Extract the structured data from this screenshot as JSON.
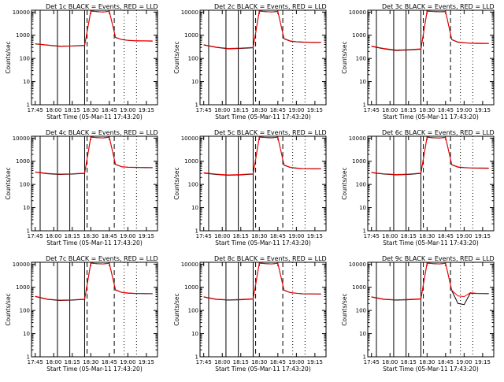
{
  "chart_data": [
    {
      "type": "line",
      "title": "Det 1c BLACK = Events, RED = LLD",
      "xlabel": "Start Time (05-Mar-11 17:43:20)",
      "ylabel": "Counts/sec",
      "y_scale": "log",
      "ylim": [
        1,
        12000
      ],
      "x": [
        "17:45",
        "17:55",
        "18:05",
        "18:15",
        "18:25",
        "18:30",
        "18:35",
        "18:40",
        "18:45",
        "18:50",
        "18:55",
        "19:00",
        "19:05",
        "19:10",
        "19:15",
        "19:20"
      ],
      "y_ticks": [
        "1",
        "10",
        "100",
        "1000",
        "10000"
      ],
      "x_ticks": [
        "17:45",
        "18:00",
        "18:15",
        "18:30",
        "18:45",
        "19:00",
        "19:15"
      ],
      "series": [
        {
          "name": "BLACK",
          "color": "#000000",
          "values": [
            420,
            370,
            330,
            340,
            360,
            11000,
            10500,
            10000,
            10800,
            800,
            650,
            600,
            580,
            570,
            565,
            560
          ]
        },
        {
          "name": "RED",
          "color": "#ff0000",
          "values": [
            430,
            380,
            340,
            350,
            370,
            11200,
            10600,
            10100,
            10900,
            820,
            660,
            610,
            590,
            580,
            575,
            570
          ]
        }
      ]
    },
    {
      "type": "line",
      "title": "Det 2c BLACK = Events, RED = LLD",
      "xlabel": "Start Time (05-Mar-11 17:43:20)",
      "ylabel": "Counts/sec",
      "y_scale": "log",
      "ylim": [
        1,
        12000
      ],
      "x": [
        "17:45",
        "17:55",
        "18:05",
        "18:15",
        "18:25",
        "18:30",
        "18:35",
        "18:40",
        "18:45",
        "18:50",
        "18:55",
        "19:00",
        "19:05",
        "19:10",
        "19:15",
        "19:20"
      ],
      "y_ticks": [
        "1",
        "10",
        "100",
        "1000",
        "10000"
      ],
      "x_ticks": [
        "17:45",
        "18:00",
        "18:15",
        "18:30",
        "18:45",
        "19:00",
        "19:15"
      ],
      "series": [
        {
          "name": "BLACK",
          "color": "#000000",
          "values": [
            380,
            300,
            260,
            270,
            290,
            11000,
            10400,
            10100,
            10700,
            700,
            560,
            520,
            500,
            495,
            490,
            488
          ]
        },
        {
          "name": "RED",
          "color": "#ff0000",
          "values": [
            390,
            310,
            270,
            280,
            300,
            11200,
            10500,
            10200,
            10800,
            720,
            570,
            530,
            510,
            505,
            500,
            498
          ]
        }
      ]
    },
    {
      "type": "line",
      "title": "Det 3c BLACK = Events, RED = LLD",
      "xlabel": "Start Time (05-Mar-11 17:43:20)",
      "ylabel": "Counts/sec",
      "y_scale": "log",
      "ylim": [
        1,
        12000
      ],
      "x": [
        "17:45",
        "17:55",
        "18:05",
        "18:15",
        "18:25",
        "18:30",
        "18:35",
        "18:40",
        "18:45",
        "18:50",
        "18:55",
        "19:00",
        "19:05",
        "19:10",
        "19:15",
        "19:20"
      ],
      "y_ticks": [
        "1",
        "10",
        "100",
        "1000",
        "10000"
      ],
      "x_ticks": [
        "17:45",
        "18:00",
        "18:15",
        "18:30",
        "18:45",
        "19:00",
        "19:15"
      ],
      "series": [
        {
          "name": "BLACK",
          "color": "#000000",
          "values": [
            330,
            260,
            220,
            230,
            250,
            10800,
            10600,
            10300,
            10500,
            640,
            500,
            470,
            450,
            445,
            440,
            438
          ]
        },
        {
          "name": "RED",
          "color": "#ff0000",
          "values": [
            340,
            270,
            230,
            240,
            260,
            11000,
            10700,
            10400,
            10600,
            660,
            510,
            480,
            460,
            455,
            450,
            448
          ]
        }
      ]
    },
    {
      "type": "line",
      "title": "Det 4c BLACK = Events, RED = LLD",
      "xlabel": "Start Time (05-Mar-11 17:43:20)",
      "ylabel": "Counts/sec",
      "y_scale": "log",
      "ylim": [
        1,
        12000
      ],
      "x": [
        "17:45",
        "17:55",
        "18:05",
        "18:15",
        "18:25",
        "18:30",
        "18:35",
        "18:40",
        "18:45",
        "18:50",
        "18:55",
        "19:00",
        "19:05",
        "19:10",
        "19:15",
        "19:20"
      ],
      "y_ticks": [
        "1",
        "10",
        "100",
        "1000",
        "10000"
      ],
      "x_ticks": [
        "17:45",
        "18:00",
        "18:15",
        "18:30",
        "18:45",
        "19:00",
        "19:15"
      ],
      "series": [
        {
          "name": "BLACK",
          "color": "#000000",
          "values": [
            340,
            290,
            270,
            280,
            300,
            11000,
            10400,
            10200,
            10900,
            720,
            580,
            550,
            540,
            535,
            530,
            528
          ]
        },
        {
          "name": "RED",
          "color": "#ff0000",
          "values": [
            350,
            300,
            280,
            290,
            310,
            11200,
            10500,
            10300,
            11000,
            740,
            590,
            560,
            550,
            545,
            540,
            538
          ]
        }
      ]
    },
    {
      "type": "line",
      "title": "Det 5c BLACK = Events, RED = LLD",
      "xlabel": "Start Time (05-Mar-11 17:43:20)",
      "ylabel": "Counts/sec",
      "y_scale": "log",
      "ylim": [
        1,
        12000
      ],
      "x": [
        "17:45",
        "17:55",
        "18:05",
        "18:15",
        "18:25",
        "18:30",
        "18:35",
        "18:40",
        "18:45",
        "18:50",
        "18:55",
        "19:00",
        "19:05",
        "19:10",
        "19:15",
        "19:20"
      ],
      "y_ticks": [
        "1",
        "10",
        "100",
        "1000",
        "10000"
      ],
      "x_ticks": [
        "17:45",
        "18:00",
        "18:15",
        "18:30",
        "18:45",
        "19:00",
        "19:15"
      ],
      "series": [
        {
          "name": "BLACK",
          "color": "#000000",
          "values": [
            310,
            270,
            250,
            260,
            280,
            11000,
            10600,
            10300,
            10800,
            680,
            540,
            500,
            480,
            475,
            470,
            468
          ]
        },
        {
          "name": "RED",
          "color": "#ff0000",
          "values": [
            320,
            280,
            260,
            270,
            290,
            11200,
            10700,
            10400,
            10900,
            700,
            550,
            510,
            490,
            485,
            480,
            478
          ]
        }
      ]
    },
    {
      "type": "line",
      "title": "Det 6c BLACK = Events, RED = LLD",
      "xlabel": "Start Time (05-Mar-11 17:43:20)",
      "ylabel": "Counts/sec",
      "y_scale": "log",
      "ylim": [
        1,
        12000
      ],
      "x": [
        "17:45",
        "17:55",
        "18:05",
        "18:15",
        "18:25",
        "18:30",
        "18:35",
        "18:40",
        "18:45",
        "18:50",
        "18:55",
        "19:00",
        "19:05",
        "19:10",
        "19:15",
        "19:20"
      ],
      "y_ticks": [
        "1",
        "10",
        "100",
        "1000",
        "10000"
      ],
      "x_ticks": [
        "17:45",
        "18:00",
        "18:15",
        "18:30",
        "18:45",
        "19:00",
        "19:15"
      ],
      "series": [
        {
          "name": "BLACK",
          "color": "#000000",
          "values": [
            320,
            280,
            260,
            270,
            300,
            10900,
            10300,
            10100,
            10700,
            700,
            560,
            530,
            510,
            505,
            500,
            498
          ]
        },
        {
          "name": "RED",
          "color": "#ff0000",
          "values": [
            330,
            290,
            270,
            280,
            310,
            11100,
            10400,
            10200,
            10800,
            720,
            570,
            540,
            520,
            515,
            510,
            508
          ]
        }
      ]
    },
    {
      "type": "line",
      "title": "Det 7c BLACK = Events, RED = LLD",
      "xlabel": "Start Time (05-Mar-11 17:43:20)",
      "ylabel": "Counts/sec",
      "y_scale": "log",
      "ylim": [
        1,
        12000
      ],
      "x": [
        "17:45",
        "17:55",
        "18:05",
        "18:15",
        "18:25",
        "18:30",
        "18:35",
        "18:40",
        "18:45",
        "18:50",
        "18:55",
        "19:00",
        "19:05",
        "19:10",
        "19:15",
        "19:20"
      ],
      "y_ticks": [
        "1",
        "10",
        "100",
        "1000",
        "10000"
      ],
      "x_ticks": [
        "17:45",
        "18:00",
        "18:15",
        "18:30",
        "18:45",
        "19:00",
        "19:15"
      ],
      "series": [
        {
          "name": "BLACK",
          "color": "#000000",
          "values": [
            400,
            300,
            270,
            280,
            300,
            11000,
            10400,
            10200,
            10800,
            760,
            600,
            560,
            540,
            535,
            530,
            528
          ]
        },
        {
          "name": "RED",
          "color": "#ff0000",
          "values": [
            410,
            310,
            280,
            290,
            310,
            11200,
            10500,
            10300,
            10900,
            780,
            610,
            570,
            550,
            545,
            540,
            538
          ]
        }
      ]
    },
    {
      "type": "line",
      "title": "Det 8c BLACK = Events, RED = LLD",
      "xlabel": "Start Time (05-Mar-11 17:43:20)",
      "ylabel": "Counts/sec",
      "y_scale": "log",
      "ylim": [
        1,
        12000
      ],
      "x": [
        "17:45",
        "17:55",
        "18:05",
        "18:15",
        "18:25",
        "18:30",
        "18:35",
        "18:40",
        "18:45",
        "18:50",
        "18:55",
        "19:00",
        "19:05",
        "19:10",
        "19:15",
        "19:20"
      ],
      "y_ticks": [
        "1",
        "10",
        "100",
        "1000",
        "10000"
      ],
      "x_ticks": [
        "17:45",
        "18:00",
        "18:15",
        "18:30",
        "18:45",
        "19:00",
        "19:15"
      ],
      "series": [
        {
          "name": "BLACK",
          "color": "#000000",
          "values": [
            380,
            300,
            280,
            290,
            310,
            11000,
            10500,
            10200,
            10800,
            740,
            590,
            550,
            520,
            515,
            510,
            508
          ]
        },
        {
          "name": "RED",
          "color": "#ff0000",
          "values": [
            390,
            310,
            290,
            300,
            320,
            11200,
            10600,
            10300,
            10900,
            760,
            600,
            560,
            530,
            525,
            520,
            518
          ]
        }
      ]
    },
    {
      "type": "line",
      "title": "Det 9c BLACK = Events, RED = LLD",
      "xlabel": "Start Time (05-Mar-11 17:43:20)",
      "ylabel": "Counts/sec",
      "y_scale": "log",
      "ylim": [
        1,
        12000
      ],
      "x": [
        "17:45",
        "17:55",
        "18:05",
        "18:15",
        "18:25",
        "18:30",
        "18:35",
        "18:40",
        "18:45",
        "18:50",
        "18:55",
        "19:00",
        "19:05",
        "19:10",
        "19:15",
        "19:20"
      ],
      "y_ticks": [
        "1",
        "10",
        "100",
        "1000",
        "10000"
      ],
      "x_ticks": [
        "17:45",
        "18:00",
        "18:15",
        "18:30",
        "18:45",
        "19:00",
        "19:15"
      ],
      "series": [
        {
          "name": "BLACK",
          "color": "#000000",
          "values": [
            380,
            300,
            280,
            290,
            310,
            11000,
            10500,
            10200,
            10800,
            720,
            200,
            180,
            560,
            540,
            535,
            530
          ]
        },
        {
          "name": "RED",
          "color": "#ff0000",
          "values": [
            390,
            310,
            290,
            300,
            320,
            11200,
            10600,
            10300,
            10900,
            740,
            420,
            400,
            580,
            550,
            545,
            540
          ]
        }
      ]
    }
  ]
}
